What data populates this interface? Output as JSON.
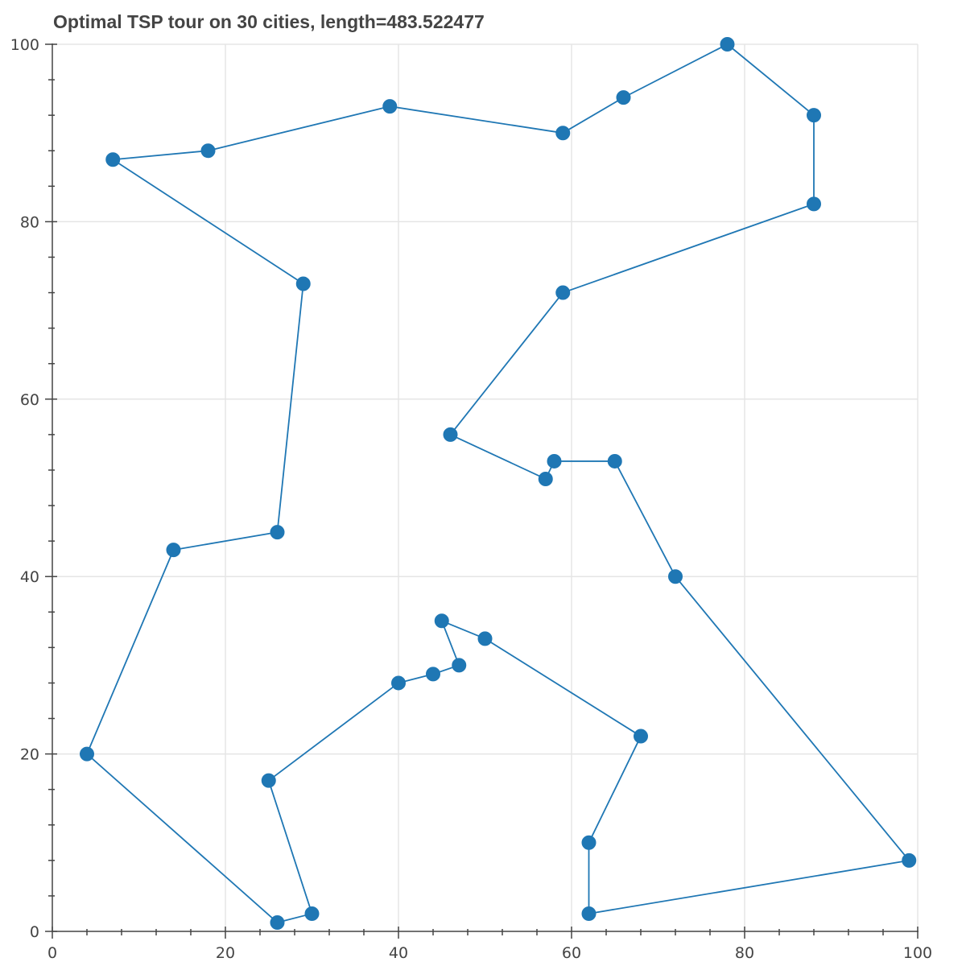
{
  "chart_data": {
    "type": "scatter",
    "title": "Optimal TSP tour on 30 cities, length=483.522477",
    "xlabel": "",
    "ylabel": "",
    "xlim": [
      0,
      100
    ],
    "ylim": [
      0,
      100
    ],
    "x_ticks": [
      "0",
      "20",
      "40",
      "60",
      "80",
      "100"
    ],
    "y_ticks": [
      "0",
      "20",
      "40",
      "60",
      "80",
      "100"
    ],
    "grid": true,
    "tour": [
      [
        78,
        100
      ],
      [
        66,
        94
      ],
      [
        59,
        90
      ],
      [
        39,
        93
      ],
      [
        18,
        88
      ],
      [
        7,
        87
      ],
      [
        29,
        73
      ],
      [
        26,
        45
      ],
      [
        14,
        43
      ],
      [
        4,
        20
      ],
      [
        26,
        1
      ],
      [
        30,
        2
      ],
      [
        25,
        17
      ],
      [
        40,
        28
      ],
      [
        44,
        29
      ],
      [
        47,
        30
      ],
      [
        45,
        35
      ],
      [
        50,
        33
      ],
      [
        68,
        22
      ],
      [
        62,
        10
      ],
      [
        62,
        2
      ],
      [
        99,
        8
      ],
      [
        72,
        40
      ],
      [
        65,
        53
      ],
      [
        58,
        53
      ],
      [
        57,
        51
      ],
      [
        46,
        56
      ],
      [
        59,
        72
      ],
      [
        88,
        82
      ],
      [
        88,
        92
      ]
    ],
    "closed": true,
    "colors": {
      "line": "#1f77b4",
      "marker": "#1f77b4",
      "grid": "#e5e5e5",
      "axis": "#444444"
    }
  }
}
